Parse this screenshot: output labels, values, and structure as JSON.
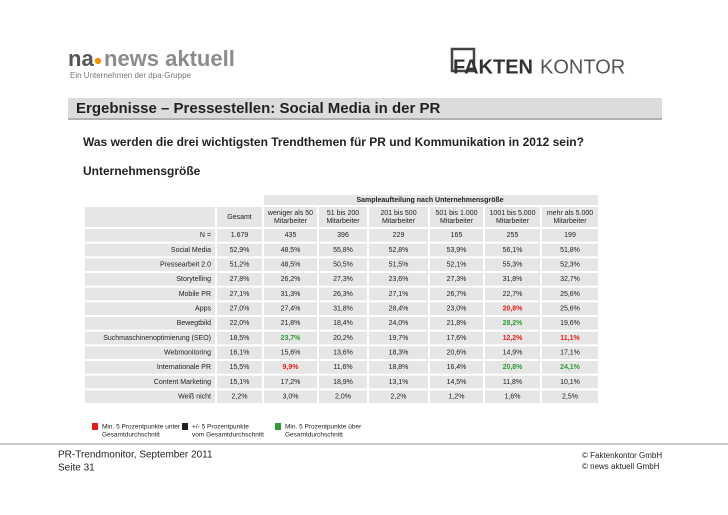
{
  "logo_left": {
    "prefix": "na",
    "name": "news aktuell",
    "tagline": "Ein Unternehmen der dpa-Gruppe"
  },
  "logo_right": {
    "bold": "FAKTEN",
    "light": "KONTOR"
  },
  "title": "Ergebnisse – Pressestellen: Social Media in der PR",
  "question": "Was werden die drei wichtigsten Trendthemen für PR und Kommunikation in 2012 sein?",
  "subtitle": "Unternehmensgröße",
  "table": {
    "group_header": "Sampleaufteilung nach Unternehmensgröße",
    "columns": [
      [
        "Gesamt"
      ],
      [
        "weniger als 50",
        "Mitarbeiter"
      ],
      [
        "51 bis 200",
        "Mitarbeiter"
      ],
      [
        "201 bis 500",
        "Mitarbeiter"
      ],
      [
        "501 bis 1.000",
        "Mitarbeiter"
      ],
      [
        "1001 bis 5.000",
        "Mitarbeiter"
      ],
      [
        "mehr als 5.000",
        "Mitarbeiter"
      ]
    ],
    "rows": [
      {
        "label": "N =",
        "cells": [
          "1.679",
          "435",
          "396",
          "229",
          "165",
          "255",
          "199"
        ]
      },
      {
        "label": "Social Media",
        "cells": [
          "52,9%",
          "48,5%",
          "55,8%",
          "52,8%",
          "53,9%",
          "56,1%",
          "51,8%"
        ]
      },
      {
        "label": "Pressearbeit 2.0",
        "cells": [
          "51,2%",
          "48,5%",
          "50,5%",
          "51,5%",
          "52,1%",
          "55,3%",
          "52,3%"
        ]
      },
      {
        "label": "Storytelling",
        "cells": [
          "27,8%",
          "26,2%",
          "27,3%",
          "23,6%",
          "27,3%",
          "31,8%",
          "32,7%"
        ]
      },
      {
        "label": "Mobile PR",
        "cells": [
          "27,1%",
          "31,3%",
          "26,3%",
          "27,1%",
          "26,7%",
          "22,7%",
          "25,6%"
        ]
      },
      {
        "label": "Apps",
        "cells": [
          "27,0%",
          "27,4%",
          "31,8%",
          "28,4%",
          "23,0%",
          "20,8%",
          "25,6%"
        ],
        "below": [
          5
        ]
      },
      {
        "label": "Bewegtbild",
        "cells": [
          "22,0%",
          "21,8%",
          "18,4%",
          "24,0%",
          "21,8%",
          "28,2%",
          "19,6%"
        ],
        "above": [
          5
        ]
      },
      {
        "label": "Suchmaschinenoptimierung (SEO)",
        "cells": [
          "18,5%",
          "23,7%",
          "20,2%",
          "19,7%",
          "17,6%",
          "12,2%",
          "11,1%"
        ],
        "above": [
          1
        ],
        "below": [
          5,
          6
        ]
      },
      {
        "label": "Webmonitoring",
        "cells": [
          "16,1%",
          "15,6%",
          "13,6%",
          "18,3%",
          "20,6%",
          "14,9%",
          "17,1%"
        ]
      },
      {
        "label": "Internationale PR",
        "cells": [
          "15,5%",
          "9,9%",
          "11,6%",
          "18,8%",
          "16,4%",
          "20,8%",
          "24,1%"
        ],
        "above": [
          5,
          6
        ],
        "below": [
          1
        ]
      },
      {
        "label": "Content Marketing",
        "cells": [
          "15,1%",
          "17,2%",
          "18,9%",
          "13,1%",
          "14,5%",
          "11,8%",
          "10,1%"
        ]
      },
      {
        "label": "Weiß nicht",
        "cells": [
          "2,2%",
          "3,0%",
          "2,0%",
          "2,2%",
          "1,2%",
          "1,6%",
          "2,5%"
        ]
      }
    ],
    "above_color": "#2e9b3a",
    "below_color": "#e0201b"
  },
  "legend": [
    {
      "color": "#e0201b",
      "lines": [
        "Min. 5 Prozentpunkte unter",
        "Gesamtdurchschnitt"
      ]
    },
    {
      "color": "#222222",
      "lines": [
        "+/- 5 Prozentpunkte",
        "vom Gesamtdurchschnitt"
      ]
    },
    {
      "color": "#2e9b3a",
      "lines": [
        "Min. 5 Prozentpunkte über",
        "Gesamtdurchschnitt"
      ]
    }
  ],
  "footer": {
    "left": [
      "PR-Trendmonitor, September 2011",
      "Seite 31"
    ],
    "right": [
      "© Faktenkontor GmbH",
      "© news aktuell GmbH"
    ]
  }
}
